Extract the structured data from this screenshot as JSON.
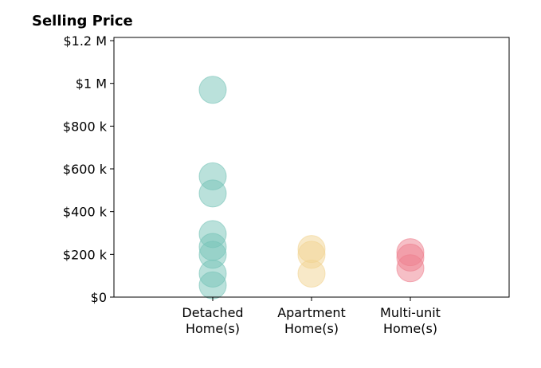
{
  "chart_data": {
    "type": "scatter",
    "title": "Selling Price",
    "categories": [
      "Detached\nHome(s)",
      "Apartment\nHome(s)",
      "Multi-unit\nHome(s)"
    ],
    "series": [
      {
        "category": "Detached\nHome(s)",
        "color": "#76c3b7",
        "values": [
          970000,
          565000,
          485000,
          295000,
          235000,
          198000,
          110000,
          55000
        ]
      },
      {
        "category": "Apartment\nHome(s)",
        "color": "#f2d491",
        "values": [
          225000,
          198000,
          110000
        ]
      },
      {
        "category": "Multi-unit\nHome(s)",
        "color": "#ee7f8e",
        "values": [
          210000,
          185000,
          135000
        ]
      }
    ],
    "y_ticks": [
      {
        "value": 0,
        "label": "$0"
      },
      {
        "value": 200000,
        "label": "$200 k"
      },
      {
        "value": 400000,
        "label": "$400 k"
      },
      {
        "value": 600000,
        "label": "$600 k"
      },
      {
        "value": 800000,
        "label": "$800 k"
      },
      {
        "value": 1000000,
        "label": "$1 M"
      },
      {
        "value": 1200000,
        "label": "$1.2 M"
      }
    ],
    "ylim": [
      0,
      1215000
    ],
    "xlim": [
      -1,
      3
    ],
    "grid": false,
    "marker_opacity": 0.5
  }
}
